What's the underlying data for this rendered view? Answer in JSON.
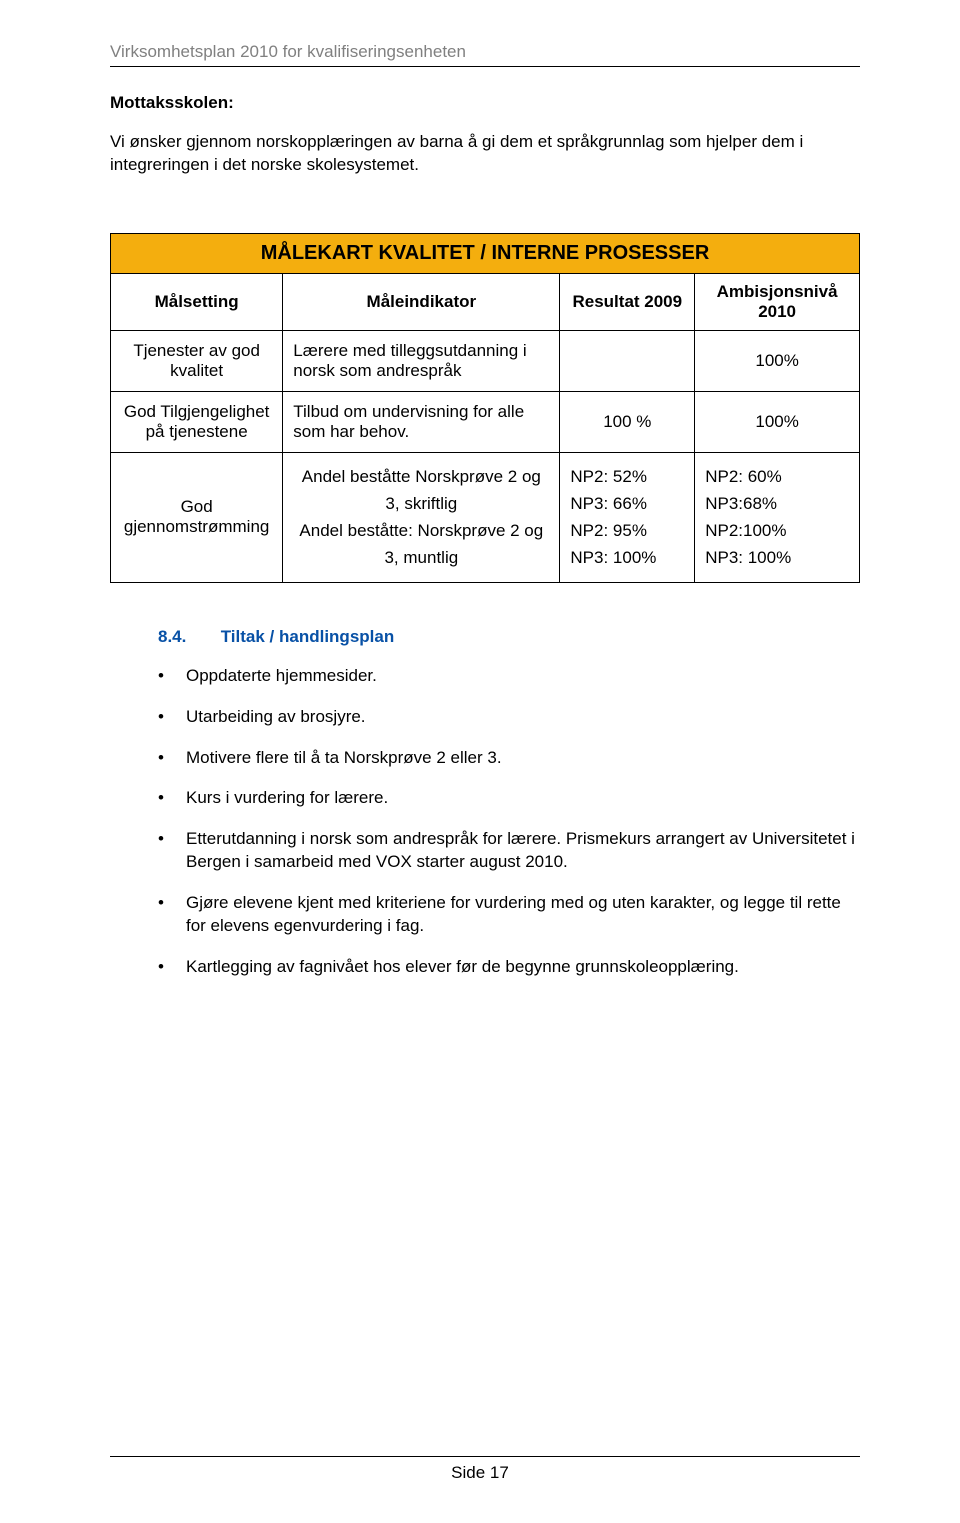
{
  "header": {
    "running": "Virksomhetsplan 2010 for kvalifiseringsenheten"
  },
  "section": {
    "title": "Mottaksskolen:",
    "intro": "Vi ønsker gjennom norskopplæringen av barna å gi dem et språkgrunnlag som hjelper dem i integreringen i det norske skolesystemet."
  },
  "table": {
    "banner": "MÅLEKART KVALITET / INTERNE PROSESSER",
    "banner_bg": "#f4ae0e",
    "columns": {
      "c0": "Målsetting",
      "c1": "Måleindikator",
      "c2": "Resultat 2009",
      "c3": "Ambisjonsnivå 2010"
    },
    "rows": [
      {
        "c0": "Tjenester av god kvalitet",
        "c1": "Lærere med tilleggsutdanning i norsk som andrespråk",
        "c2": "",
        "c3": "100%"
      },
      {
        "c0": "God Tilgjengelighet på tjenestene",
        "c1": "Tilbud om undervisning for alle som har behov.",
        "c2": "100 %",
        "c3": "100%"
      },
      {
        "c0": "God gjennomstrømming",
        "c1_lines": [
          "Andel beståtte Norskprøve 2 og 3, skriftlig",
          "",
          "Andel beståtte: Norskprøve 2 og 3, muntlig"
        ],
        "c2_lines": [
          "NP2: 52%",
          "",
          "NP3: 66%",
          "",
          "NP2: 95%",
          "",
          "NP3: 100%"
        ],
        "c3_lines": [
          "NP2: 60%",
          "",
          "NP3:68%",
          "",
          "NP2:100%",
          "",
          "NP3: 100%"
        ]
      }
    ]
  },
  "tiltak": {
    "num": "8.4.",
    "title": "Tiltak / handlingsplan",
    "items": [
      "Oppdaterte hjemmesider.",
      "Utarbeiding av brosjyre.",
      "Motivere flere til å ta Norskprøve 2 eller 3.",
      "Kurs i vurdering for lærere.",
      "Etterutdanning i norsk som andrespråk for lærere. Prismekurs arrangert av Universitetet i Bergen i samarbeid med VOX starter august 2010.",
      "Gjøre elevene kjent med kriteriene for vurdering med og uten karakter, og legge til rette for elevens egenvurdering i fag.",
      "Kartlegging av fagnivået hos elever før de begynne grunnskoleopplæring."
    ]
  },
  "footer": {
    "text": "Side 17"
  }
}
